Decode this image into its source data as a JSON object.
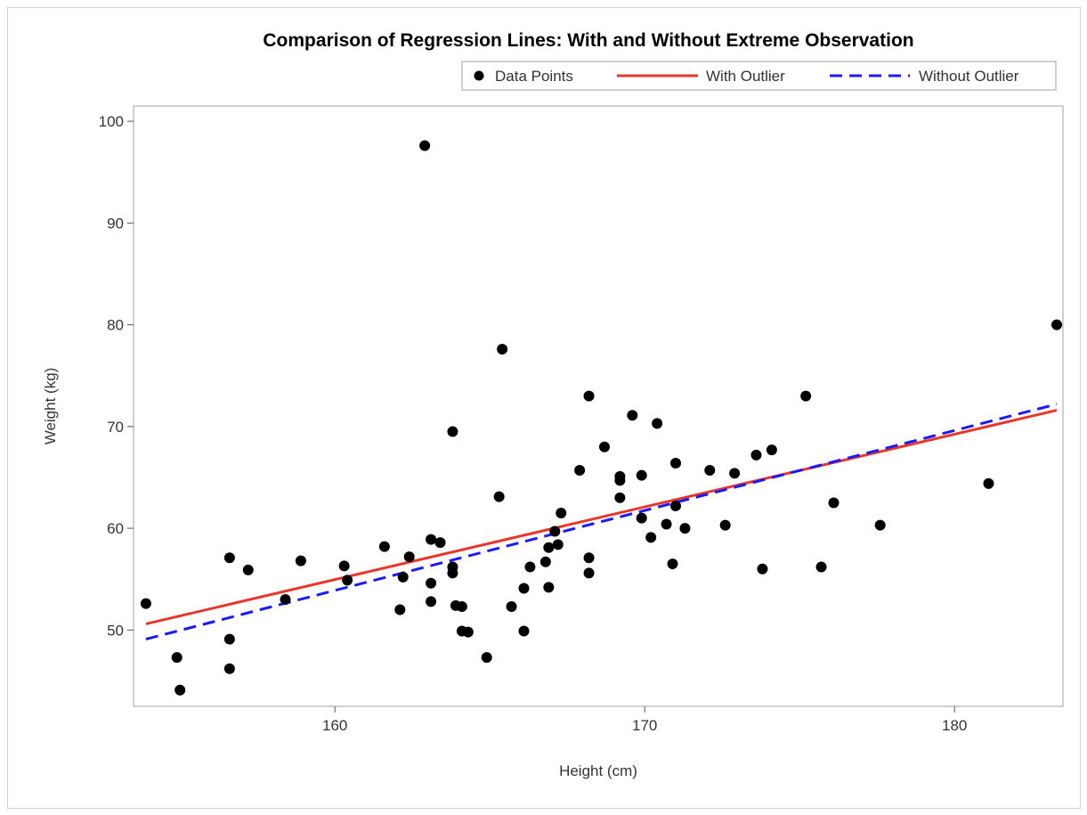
{
  "chart_data": {
    "type": "scatter",
    "title": "Comparison of Regression Lines: With and Without Extreme Observation",
    "xlabel": "Height (cm)",
    "ylabel": "Weight (kg)",
    "xlim": [
      153.5,
      183.5
    ],
    "ylim": [
      42.5,
      101.5
    ],
    "x_ticks": [
      160,
      170,
      180
    ],
    "y_ticks": [
      50,
      60,
      70,
      80,
      90,
      100
    ],
    "grid": false,
    "legend_position": "top-right",
    "legend": {
      "points_label": "Data Points",
      "with_label": "With Outlier",
      "without_label": "Without Outlier"
    },
    "colors": {
      "points": "#000000",
      "with_outlier": "#e8362a",
      "without_outlier": "#1a1aff"
    },
    "points": [
      {
        "x": 153.9,
        "y": 52.6
      },
      {
        "x": 154.9,
        "y": 47.3
      },
      {
        "x": 155.0,
        "y": 44.1
      },
      {
        "x": 156.6,
        "y": 57.1
      },
      {
        "x": 156.6,
        "y": 49.1
      },
      {
        "x": 156.6,
        "y": 46.2
      },
      {
        "x": 157.2,
        "y": 55.9
      },
      {
        "x": 158.4,
        "y": 53.0
      },
      {
        "x": 158.9,
        "y": 56.8
      },
      {
        "x": 160.3,
        "y": 56.3
      },
      {
        "x": 160.4,
        "y": 54.9
      },
      {
        "x": 161.6,
        "y": 58.2
      },
      {
        "x": 162.1,
        "y": 52.0
      },
      {
        "x": 162.2,
        "y": 55.2
      },
      {
        "x": 162.4,
        "y": 57.2
      },
      {
        "x": 162.9,
        "y": 97.6
      },
      {
        "x": 163.1,
        "y": 58.9
      },
      {
        "x": 163.1,
        "y": 54.6
      },
      {
        "x": 163.1,
        "y": 52.8
      },
      {
        "x": 163.4,
        "y": 58.6
      },
      {
        "x": 163.8,
        "y": 69.5
      },
      {
        "x": 163.8,
        "y": 56.2
      },
      {
        "x": 163.8,
        "y": 55.6
      },
      {
        "x": 163.9,
        "y": 52.4
      },
      {
        "x": 164.1,
        "y": 52.3
      },
      {
        "x": 164.1,
        "y": 49.9
      },
      {
        "x": 164.3,
        "y": 49.8
      },
      {
        "x": 164.9,
        "y": 47.3
      },
      {
        "x": 165.3,
        "y": 63.1
      },
      {
        "x": 165.4,
        "y": 77.6
      },
      {
        "x": 165.7,
        "y": 52.3
      },
      {
        "x": 166.1,
        "y": 54.1
      },
      {
        "x": 166.1,
        "y": 49.9
      },
      {
        "x": 166.3,
        "y": 56.2
      },
      {
        "x": 166.8,
        "y": 56.7
      },
      {
        "x": 166.9,
        "y": 58.1
      },
      {
        "x": 166.9,
        "y": 54.2
      },
      {
        "x": 167.1,
        "y": 59.7
      },
      {
        "x": 167.2,
        "y": 58.4
      },
      {
        "x": 167.3,
        "y": 61.5
      },
      {
        "x": 167.9,
        "y": 65.7
      },
      {
        "x": 168.2,
        "y": 73.0
      },
      {
        "x": 168.2,
        "y": 57.1
      },
      {
        "x": 168.2,
        "y": 55.6
      },
      {
        "x": 168.7,
        "y": 68.0
      },
      {
        "x": 169.2,
        "y": 65.1
      },
      {
        "x": 169.2,
        "y": 64.7
      },
      {
        "x": 169.2,
        "y": 63.0
      },
      {
        "x": 169.6,
        "y": 71.1
      },
      {
        "x": 169.9,
        "y": 65.2
      },
      {
        "x": 169.9,
        "y": 61.0
      },
      {
        "x": 170.2,
        "y": 59.1
      },
      {
        "x": 170.4,
        "y": 70.3
      },
      {
        "x": 170.7,
        "y": 60.4
      },
      {
        "x": 170.9,
        "y": 56.5
      },
      {
        "x": 171.0,
        "y": 66.4
      },
      {
        "x": 171.0,
        "y": 62.2
      },
      {
        "x": 171.3,
        "y": 60.0
      },
      {
        "x": 172.1,
        "y": 65.7
      },
      {
        "x": 172.6,
        "y": 60.3
      },
      {
        "x": 172.9,
        "y": 65.4
      },
      {
        "x": 173.6,
        "y": 67.2
      },
      {
        "x": 173.8,
        "y": 56.0
      },
      {
        "x": 174.1,
        "y": 67.7
      },
      {
        "x": 175.2,
        "y": 73.0
      },
      {
        "x": 175.7,
        "y": 56.2
      },
      {
        "x": 176.1,
        "y": 62.5
      },
      {
        "x": 177.6,
        "y": 60.3
      },
      {
        "x": 181.1,
        "y": 64.4
      },
      {
        "x": 183.3,
        "y": 80.0
      }
    ],
    "series": [
      {
        "name": "With Outlier",
        "x": [
          153.9,
          183.3
        ],
        "y": [
          50.6,
          71.6
        ]
      },
      {
        "name": "Without Outlier",
        "x": [
          153.9,
          183.3
        ],
        "y": [
          49.1,
          72.2
        ]
      }
    ]
  }
}
